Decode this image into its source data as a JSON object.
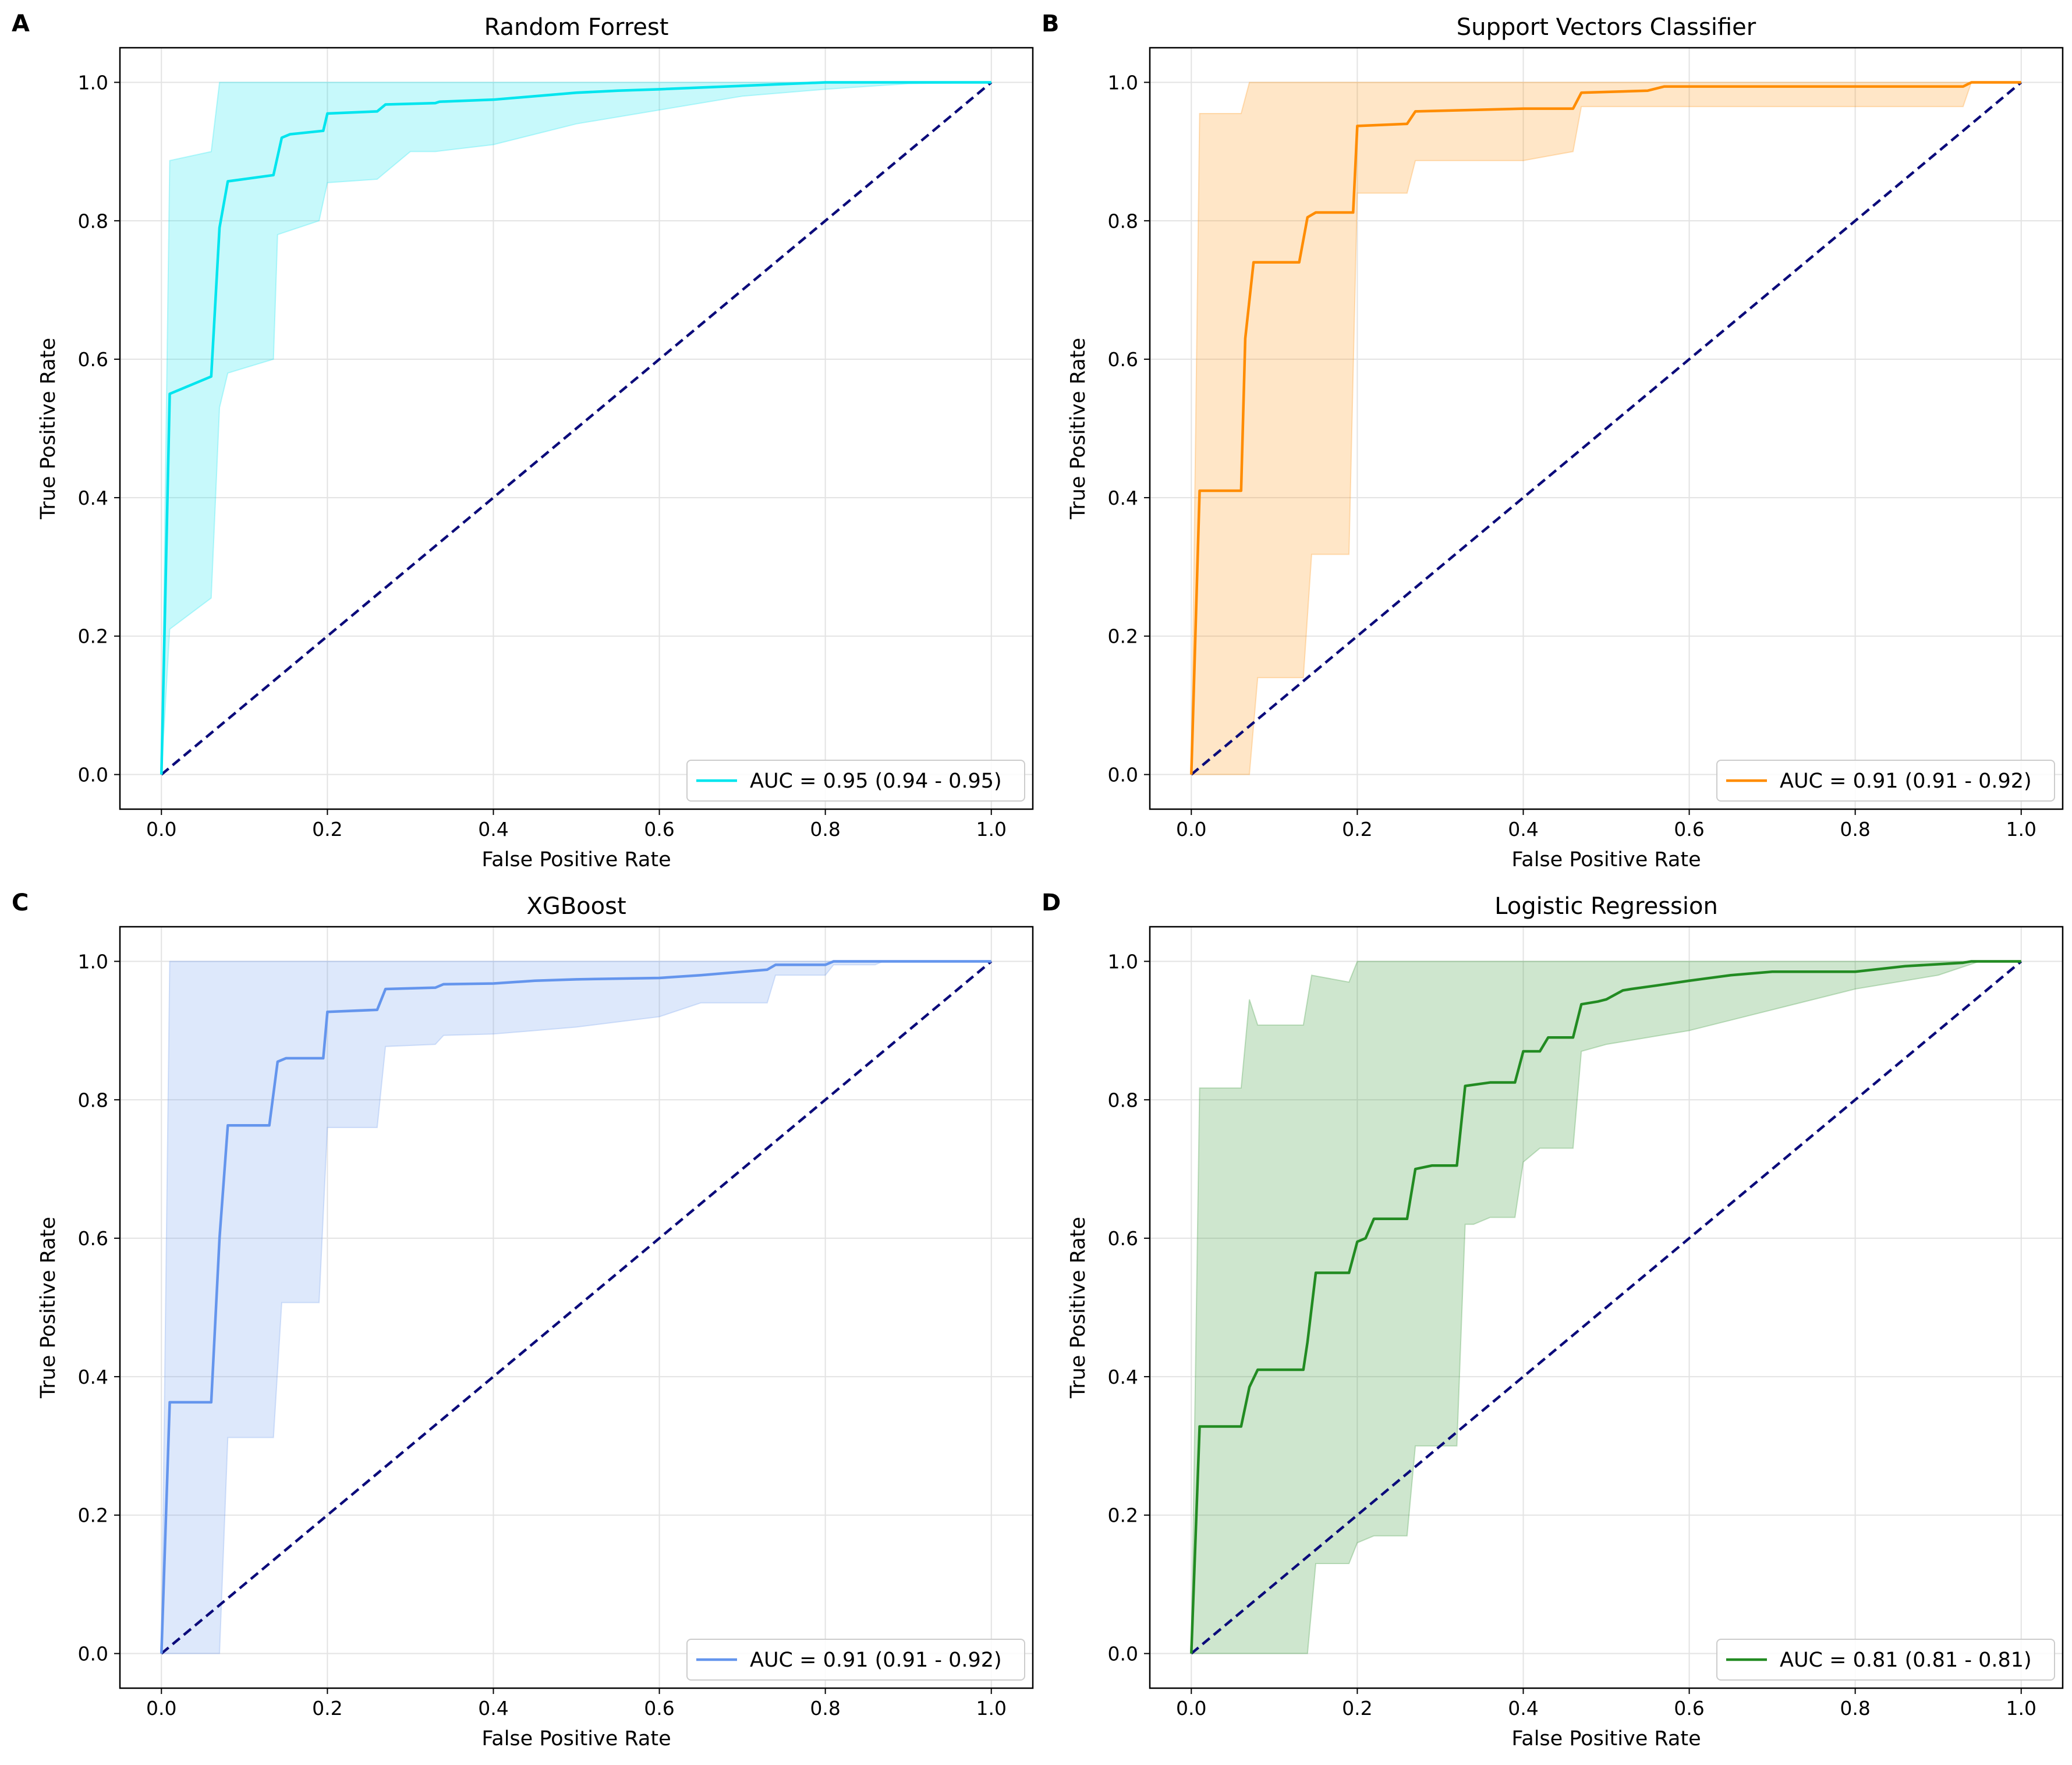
{
  "chart_data": [
    {
      "type": "line",
      "panel": "A",
      "title": "Random Forrest",
      "xlabel": "False Positive Rate",
      "ylabel": "True Positive Rate",
      "xlim": [
        -0.05,
        1.05
      ],
      "ylim": [
        -0.05,
        1.05
      ],
      "xticks": [
        "0.0",
        "0.2",
        "0.4",
        "0.6",
        "0.8",
        "1.0"
      ],
      "yticks": [
        "0.0",
        "0.2",
        "0.4",
        "0.6",
        "0.8",
        "1.0"
      ],
      "grid": true,
      "legend_position": "lower-right",
      "legend_label": "AUC = 0.95 (0.94 - 0.95)",
      "color": "#00e5ee",
      "diagonal_color": "#0b0b7a",
      "series": [
        {
          "name": "mean",
          "x": [
            0,
            0.01,
            0.06,
            0.07,
            0.08,
            0.135,
            0.145,
            0.155,
            0.195,
            0.2,
            0.26,
            0.27,
            0.33,
            0.335,
            0.4,
            0.45,
            0.5,
            0.55,
            0.6,
            0.7,
            0.8,
            1.0
          ],
          "y": [
            0,
            0.55,
            0.575,
            0.79,
            0.857,
            0.866,
            0.92,
            0.925,
            0.93,
            0.955,
            0.958,
            0.968,
            0.97,
            0.972,
            0.975,
            0.98,
            0.985,
            0.988,
            0.99,
            0.995,
            1.0,
            1.0
          ]
        },
        {
          "name": "upper",
          "x": [
            0,
            0.01,
            0.06,
            0.07,
            1.0
          ],
          "y": [
            0,
            0.887,
            0.9,
            1.0,
            1.0
          ]
        },
        {
          "name": "lower",
          "x": [
            0,
            0.01,
            0.06,
            0.07,
            0.08,
            0.135,
            0.14,
            0.19,
            0.2,
            0.26,
            0.27,
            0.3,
            0.33,
            0.4,
            0.5,
            0.6,
            0.7,
            0.8,
            0.9,
            1.0
          ],
          "y": [
            0,
            0.21,
            0.255,
            0.53,
            0.58,
            0.6,
            0.78,
            0.8,
            0.855,
            0.86,
            0.87,
            0.9,
            0.9,
            0.91,
            0.94,
            0.96,
            0.98,
            0.99,
            0.998,
            1.0
          ]
        }
      ]
    },
    {
      "type": "line",
      "panel": "B",
      "title": "Support Vectors Classifier",
      "xlabel": "False Positive Rate",
      "ylabel": "True Positive Rate",
      "xlim": [
        -0.05,
        1.05
      ],
      "ylim": [
        -0.05,
        1.05
      ],
      "xticks": [
        "0.0",
        "0.2",
        "0.4",
        "0.6",
        "0.8",
        "1.0"
      ],
      "yticks": [
        "0.0",
        "0.2",
        "0.4",
        "0.6",
        "0.8",
        "1.0"
      ],
      "grid": true,
      "legend_position": "lower-right",
      "legend_label": "AUC = 0.91 (0.91 - 0.92)",
      "color": "#ff8c00",
      "diagonal_color": "#0b0b7a",
      "series": [
        {
          "name": "mean",
          "x": [
            0,
            0.01,
            0.06,
            0.065,
            0.075,
            0.13,
            0.14,
            0.15,
            0.195,
            0.2,
            0.26,
            0.27,
            0.4,
            0.46,
            0.47,
            0.55,
            0.57,
            0.93,
            0.94,
            1.0
          ],
          "y": [
            0,
            0.41,
            0.41,
            0.63,
            0.74,
            0.74,
            0.805,
            0.812,
            0.812,
            0.937,
            0.94,
            0.958,
            0.962,
            0.962,
            0.985,
            0.988,
            0.994,
            0.994,
            1.0,
            1.0
          ]
        },
        {
          "name": "upper",
          "x": [
            0,
            0.01,
            0.06,
            0.07,
            1.0
          ],
          "y": [
            0,
            0.955,
            0.955,
            1.0,
            1.0
          ]
        },
        {
          "name": "lower",
          "x": [
            0,
            0.07,
            0.08,
            0.135,
            0.145,
            0.19,
            0.2,
            0.26,
            0.27,
            0.4,
            0.46,
            0.47,
            0.93,
            0.94,
            1.0
          ],
          "y": [
            0,
            0,
            0.14,
            0.14,
            0.318,
            0.318,
            0.84,
            0.84,
            0.887,
            0.887,
            0.9,
            0.965,
            0.965,
            1.0,
            1.0
          ]
        }
      ]
    },
    {
      "type": "line",
      "panel": "C",
      "title": "XGBoost",
      "xlabel": "False Positive Rate",
      "ylabel": "True Positive Rate",
      "xlim": [
        -0.05,
        1.05
      ],
      "ylim": [
        -0.05,
        1.05
      ],
      "xticks": [
        "0.0",
        "0.2",
        "0.4",
        "0.6",
        "0.8",
        "1.0"
      ],
      "yticks": [
        "0.0",
        "0.2",
        "0.4",
        "0.6",
        "0.8",
        "1.0"
      ],
      "grid": true,
      "legend_position": "lower-right",
      "legend_label": "AUC = 0.91 (0.91 - 0.92)",
      "color": "#6495ed",
      "diagonal_color": "#0b0b7a",
      "series": [
        {
          "name": "mean",
          "x": [
            0,
            0.01,
            0.06,
            0.07,
            0.08,
            0.13,
            0.14,
            0.15,
            0.195,
            0.2,
            0.26,
            0.27,
            0.33,
            0.34,
            0.4,
            0.45,
            0.5,
            0.6,
            0.65,
            0.7,
            0.73,
            0.74,
            0.8,
            0.81,
            1.0
          ],
          "y": [
            0,
            0.363,
            0.363,
            0.6,
            0.763,
            0.763,
            0.855,
            0.86,
            0.86,
            0.927,
            0.93,
            0.96,
            0.962,
            0.967,
            0.968,
            0.972,
            0.974,
            0.976,
            0.98,
            0.985,
            0.988,
            0.995,
            0.995,
            1.0,
            1.0
          ]
        },
        {
          "name": "upper",
          "x": [
            0,
            0.01,
            0.8,
            1.0
          ],
          "y": [
            0,
            1.0,
            1.0,
            1.0
          ]
        },
        {
          "name": "lower",
          "x": [
            0,
            0.07,
            0.08,
            0.135,
            0.145,
            0.19,
            0.2,
            0.26,
            0.27,
            0.33,
            0.34,
            0.4,
            0.5,
            0.6,
            0.65,
            0.73,
            0.74,
            0.8,
            0.81,
            0.86,
            0.87,
            1.0
          ],
          "y": [
            0,
            0,
            0.312,
            0.312,
            0.507,
            0.507,
            0.76,
            0.76,
            0.877,
            0.88,
            0.893,
            0.895,
            0.905,
            0.92,
            0.94,
            0.94,
            0.98,
            0.98,
            0.995,
            0.995,
            1.0,
            1.0
          ]
        }
      ]
    },
    {
      "type": "line",
      "panel": "D",
      "title": "Logistic Regression",
      "xlabel": "False Positive Rate",
      "ylabel": "True Positive Rate",
      "xlim": [
        -0.05,
        1.05
      ],
      "ylim": [
        -0.05,
        1.05
      ],
      "xticks": [
        "0.0",
        "0.2",
        "0.4",
        "0.6",
        "0.8",
        "1.0"
      ],
      "yticks": [
        "0.0",
        "0.2",
        "0.4",
        "0.6",
        "0.8",
        "1.0"
      ],
      "grid": true,
      "legend_position": "lower-right",
      "legend_label": "AUC = 0.81 (0.81 - 0.81)",
      "color": "#228b22",
      "diagonal_color": "#0b0b7a",
      "series": [
        {
          "name": "mean",
          "x": [
            0,
            0.01,
            0.06,
            0.07,
            0.08,
            0.135,
            0.14,
            0.15,
            0.19,
            0.2,
            0.21,
            0.22,
            0.26,
            0.27,
            0.29,
            0.32,
            0.33,
            0.36,
            0.39,
            0.4,
            0.42,
            0.43,
            0.46,
            0.47,
            0.49,
            0.5,
            0.52,
            0.53,
            0.56,
            0.6,
            0.65,
            0.7,
            0.8,
            0.86,
            0.93,
            0.94,
            1.0
          ],
          "y": [
            0,
            0.328,
            0.328,
            0.385,
            0.41,
            0.41,
            0.45,
            0.55,
            0.55,
            0.595,
            0.6,
            0.628,
            0.628,
            0.7,
            0.705,
            0.705,
            0.82,
            0.825,
            0.825,
            0.87,
            0.87,
            0.89,
            0.89,
            0.938,
            0.942,
            0.945,
            0.958,
            0.96,
            0.965,
            0.972,
            0.98,
            0.985,
            0.985,
            0.993,
            0.998,
            1.0,
            1.0
          ]
        },
        {
          "name": "upper",
          "x": [
            0,
            0.01,
            0.06,
            0.07,
            0.08,
            0.135,
            0.145,
            0.19,
            0.2,
            1.0
          ],
          "y": [
            0,
            0.817,
            0.817,
            0.945,
            0.908,
            0.908,
            0.98,
            0.97,
            1.0,
            1.0
          ]
        },
        {
          "name": "lower",
          "x": [
            0,
            0.14,
            0.15,
            0.19,
            0.2,
            0.22,
            0.26,
            0.27,
            0.32,
            0.33,
            0.34,
            0.36,
            0.39,
            0.4,
            0.42,
            0.46,
            0.47,
            0.5,
            0.6,
            0.7,
            0.8,
            0.9,
            0.95,
            1.0
          ],
          "y": [
            0,
            0,
            0.13,
            0.13,
            0.16,
            0.17,
            0.17,
            0.3,
            0.3,
            0.62,
            0.62,
            0.63,
            0.63,
            0.71,
            0.73,
            0.73,
            0.87,
            0.88,
            0.9,
            0.93,
            0.96,
            0.98,
            1.0,
            1.0
          ]
        }
      ]
    }
  ]
}
